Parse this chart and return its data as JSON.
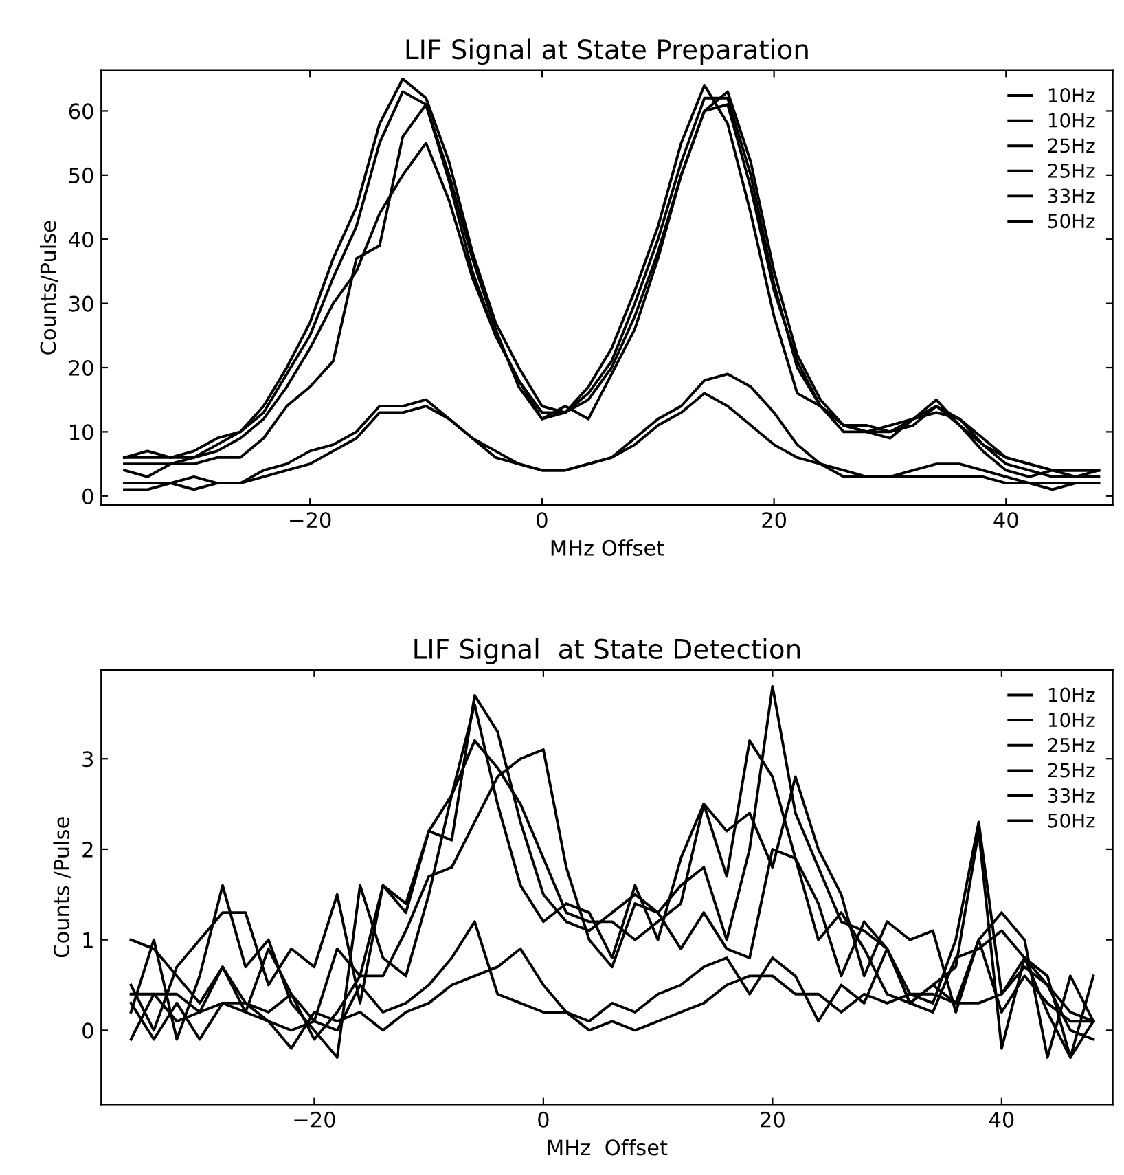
{
  "chart_data": [
    {
      "type": "line",
      "title": "LIF Signal at State Preparation",
      "xlabel": "MHz Offset",
      "ylabel": "Counts/Pulse",
      "xlim": [
        -38,
        49.2
      ],
      "ylim": [
        -1.4,
        66.3
      ],
      "xticks": [
        {
          "value": -20,
          "label": "−20"
        },
        0,
        20,
        40
      ],
      "yticks": [
        0,
        10,
        20,
        30,
        40,
        50,
        60
      ],
      "legend": "top right",
      "grid": false,
      "x": [
        -36,
        -34,
        -32,
        -30,
        -28,
        -26,
        -24,
        -22,
        -20,
        -18,
        -16,
        -14,
        -12,
        -10,
        -8,
        -6,
        -4,
        -2,
        0,
        2,
        4,
        6,
        8,
        10,
        12,
        14,
        16,
        18,
        20,
        22,
        24,
        26,
        28,
        30,
        32,
        34,
        36,
        38,
        40,
        42,
        44,
        46,
        48
      ],
      "series": [
        {
          "name": "10Hz",
          "color": "#000000",
          "values": [
            6,
            7,
            6,
            7,
            9,
            10,
            14,
            20,
            27,
            37,
            45,
            58,
            65,
            62,
            52,
            38,
            27,
            20,
            14,
            13,
            16,
            21,
            30,
            40,
            52,
            62,
            62,
            50,
            33,
            20,
            14,
            11,
            10,
            11,
            12,
            14,
            11,
            8,
            6,
            5,
            4,
            4,
            4
          ]
        },
        {
          "name": "10Hz",
          "color": "#000000",
          "values": [
            5,
            5,
            5,
            6,
            7,
            9,
            12,
            17,
            23,
            30,
            35,
            44,
            50,
            55,
            46,
            34,
            25,
            18,
            13,
            13,
            15,
            20,
            28,
            38,
            50,
            60,
            63,
            52,
            35,
            22,
            15,
            11,
            10,
            10,
            12,
            13,
            12,
            8,
            5,
            4,
            3,
            3,
            3
          ]
        },
        {
          "name": "25Hz",
          "color": "#000000",
          "values": [
            6,
            6,
            6,
            6,
            8,
            10,
            13,
            19,
            25,
            34,
            42,
            55,
            63,
            61,
            50,
            37,
            26,
            17,
            12,
            14,
            12,
            19,
            26,
            37,
            50,
            60,
            61,
            48,
            32,
            21,
            14,
            11,
            11,
            10,
            11,
            14,
            12,
            9,
            6,
            5,
            4,
            4,
            4
          ]
        },
        {
          "name": "25Hz",
          "color": "#000000",
          "values": [
            4,
            3,
            5,
            5,
            6,
            6,
            9,
            14,
            17,
            21,
            37,
            39,
            56,
            61,
            49,
            35,
            25,
            18,
            12,
            13,
            17,
            23,
            32,
            42,
            55,
            64,
            58,
            44,
            28,
            16,
            14,
            10,
            10,
            9,
            12,
            15,
            11,
            7,
            4,
            3,
            4,
            3,
            4
          ]
        },
        {
          "name": "33Hz",
          "color": "#000000",
          "values": [
            1,
            1,
            2,
            1,
            2,
            2,
            3,
            4,
            5,
            7,
            9,
            13,
            13,
            14,
            12,
            9,
            7,
            5,
            4,
            4,
            5,
            6,
            8,
            11,
            13,
            16,
            14,
            11,
            8,
            6,
            5,
            4,
            3,
            3,
            3,
            3,
            3,
            3,
            2,
            2,
            1,
            2,
            2
          ]
        },
        {
          "name": "50Hz",
          "color": "#000000",
          "values": [
            2,
            2,
            2,
            3,
            2,
            2,
            4,
            5,
            7,
            8,
            10,
            14,
            14,
            15,
            12,
            9,
            6,
            5,
            4,
            4,
            5,
            6,
            9,
            12,
            14,
            18,
            19,
            17,
            13,
            8,
            5,
            3,
            3,
            3,
            4,
            5,
            5,
            4,
            3,
            2,
            2,
            2,
            2
          ]
        }
      ]
    },
    {
      "type": "line",
      "title": "LIF Signal  at State Detection",
      "xlabel": "MHz  Offset",
      "ylabel": "Counts /Pulse",
      "xlim": [
        -38.6,
        49.7
      ],
      "ylim": [
        -0.82,
        3.98
      ],
      "xticks": [
        {
          "value": -20,
          "label": "−20"
        },
        0,
        20,
        40
      ],
      "yticks": [
        0,
        1,
        2,
        3
      ],
      "legend": "top right",
      "grid": false,
      "x": [
        -36,
        -34,
        -32,
        -30,
        -28,
        -26,
        -24,
        -22,
        -20,
        -18,
        -16,
        -14,
        -12,
        -10,
        -8,
        -6,
        -4,
        -2,
        0,
        2,
        4,
        6,
        8,
        10,
        12,
        14,
        16,
        18,
        20,
        22,
        24,
        26,
        28,
        30,
        32,
        34,
        36,
        38,
        40,
        42,
        44,
        46,
        48
      ],
      "series": [
        {
          "name": "10Hz",
          "color": "#000000",
          "values": [
            1.0,
            0.9,
            0.6,
            0.3,
            0.7,
            0.2,
            0.9,
            0.4,
            -0.1,
            0.2,
            0.6,
            1.6,
            1.3,
            2.2,
            2.1,
            3.7,
            3.3,
            2.3,
            1.5,
            1.2,
            1.1,
            1.3,
            1.5,
            1.3,
            1.6,
            1.8,
            1.0,
            2.0,
            3.8,
            2.4,
            1.8,
            1.2,
            1.1,
            0.9,
            0.4,
            0.3,
            1.0,
            2.3,
            0.4,
            0.8,
            0.6,
            -0.3,
            0.6
          ]
        },
        {
          "name": "10Hz",
          "color": "#000000",
          "values": [
            0.2,
            1.0,
            -0.1,
            0.6,
            1.6,
            0.7,
            1.0,
            0.3,
            0.0,
            -0.3,
            1.6,
            0.8,
            0.6,
            1.5,
            2.6,
            3.6,
            2.5,
            1.6,
            1.2,
            1.4,
            1.3,
            0.8,
            1.6,
            1.0,
            1.9,
            2.5,
            1.7,
            3.2,
            2.8,
            1.9,
            1.4,
            0.6,
            1.2,
            0.9,
            0.3,
            0.5,
            0.7,
            2.2,
            -0.2,
            0.8,
            0.2,
            -0.3,
            0.1
          ]
        },
        {
          "name": "25Hz",
          "color": "#000000",
          "values": [
            0.5,
            0.0,
            0.7,
            1.0,
            1.3,
            1.3,
            0.5,
            0.9,
            0.7,
            1.5,
            0.3,
            1.6,
            1.4,
            2.2,
            2.6,
            3.2,
            2.9,
            2.5,
            1.9,
            1.3,
            1.2,
            1.2,
            1.0,
            1.2,
            1.4,
            2.5,
            2.2,
            2.4,
            1.8,
            2.8,
            2.0,
            1.5,
            0.6,
            1.2,
            1.0,
            1.1,
            0.2,
            1.0,
            1.3,
            1.0,
            -0.3,
            0.6,
            0.1
          ]
        },
        {
          "name": "25Hz",
          "color": "#000000",
          "values": [
            -0.1,
            0.4,
            0.4,
            0.2,
            0.7,
            0.3,
            0.2,
            0.4,
            0.1,
            0.9,
            0.6,
            0.6,
            1.1,
            1.7,
            1.8,
            2.3,
            2.8,
            3.0,
            3.1,
            1.8,
            1.0,
            0.7,
            1.4,
            1.3,
            0.9,
            1.3,
            0.9,
            0.8,
            2.0,
            1.9,
            1.0,
            1.3,
            0.9,
            0.4,
            0.3,
            0.2,
            0.8,
            0.9,
            1.1,
            0.8,
            0.5,
            0.0,
            -0.1
          ]
        },
        {
          "name": "33Hz",
          "color": "#000000",
          "values": [
            0.4,
            0.4,
            0.1,
            0.2,
            0.3,
            0.3,
            0.1,
            0.0,
            0.1,
            0.0,
            0.5,
            0.2,
            0.3,
            0.5,
            0.8,
            1.2,
            0.4,
            0.3,
            0.2,
            0.2,
            0.1,
            0.3,
            0.2,
            0.4,
            0.5,
            0.7,
            0.8,
            0.4,
            0.8,
            0.6,
            0.1,
            0.5,
            0.3,
            0.9,
            0.3,
            0.5,
            0.3,
            1.0,
            0.2,
            0.6,
            0.3,
            0.1,
            0.1
          ]
        },
        {
          "name": "50Hz",
          "color": "#000000",
          "values": [
            0.3,
            -0.1,
            0.3,
            -0.1,
            0.3,
            0.2,
            0.1,
            -0.2,
            0.2,
            0.1,
            0.2,
            0.0,
            0.2,
            0.3,
            0.5,
            0.6,
            0.7,
            0.9,
            0.5,
            0.2,
            0.0,
            0.1,
            0.0,
            0.1,
            0.2,
            0.3,
            0.5,
            0.6,
            0.6,
            0.4,
            0.4,
            0.2,
            0.4,
            0.3,
            0.4,
            0.4,
            0.3,
            0.3,
            0.4,
            0.7,
            0.5,
            0.2,
            0.1
          ]
        }
      ]
    }
  ]
}
